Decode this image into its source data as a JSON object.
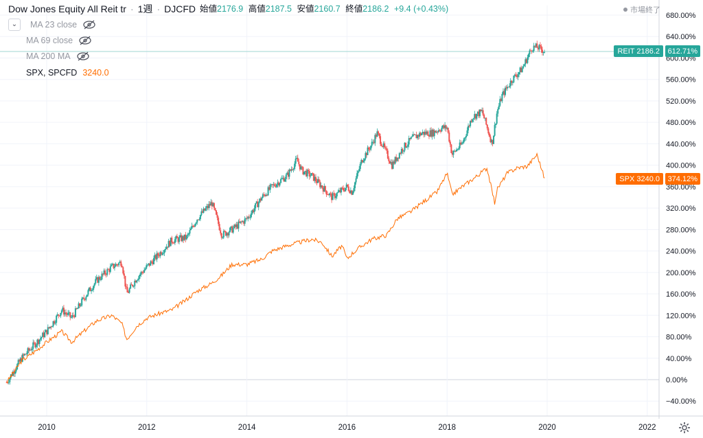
{
  "legend": {
    "title": "Dow Jones Equity All Reit tr",
    "interval": "1週",
    "source": "DJCFD",
    "open_label": "始値",
    "open": "2176.9",
    "high_label": "高値",
    "high": "2187.5",
    "low_label": "安値",
    "low": "2160.7",
    "close_label": "終値",
    "close": "2186.2",
    "change": "+9.4 (+0.43%)",
    "indicators": [
      "MA 23 close",
      "MA 69 close",
      "MA 200 MA"
    ],
    "compare_symbol": "SPX, SPCFD",
    "compare_value": "3240.0"
  },
  "market_status": "市場終了",
  "price_tags": {
    "reit_label": "REIT 2186.2",
    "reit_pct": "612.71%",
    "spx_label": "SPX 3240.0",
    "spx_pct": "374.12%"
  },
  "colors": {
    "up": "#26a69a",
    "down": "#ef5350",
    "spx": "#ff6d00",
    "grid": "#f0f3fa",
    "axis_text": "#131722"
  },
  "chart_data": {
    "type": "line",
    "title": "Dow Jones Equity All Reit tr",
    "xlabel": "",
    "ylabel": "",
    "x_ticks": [
      "2010",
      "2012",
      "2014",
      "2016",
      "2018",
      "2020",
      "2022"
    ],
    "y_ticks": [
      "680.00%",
      "640.00%",
      "600.00%",
      "560.00%",
      "520.00%",
      "480.00%",
      "440.00%",
      "400.00%",
      "360.00%",
      "320.00%",
      "280.00%",
      "240.00%",
      "200.00%",
      "160.00%",
      "120.00%",
      "80.00%",
      "40.00%",
      "0.00%",
      "−40.00%"
    ],
    "ylim": [
      -60,
      700
    ],
    "xlim": [
      2009.2,
      2022.5
    ],
    "grid": true,
    "series": [
      {
        "name": "Dow Jones Equity All Reit tr",
        "style": "candlestick",
        "x": [
          2009.2,
          2009.5,
          2009.8,
          2010.0,
          2010.3,
          2010.5,
          2010.8,
          2011.0,
          2011.3,
          2011.5,
          2011.6,
          2011.8,
          2012.0,
          2012.3,
          2012.5,
          2012.8,
          2013.0,
          2013.3,
          2013.5,
          2013.7,
          2014.0,
          2014.3,
          2014.5,
          2014.8,
          2015.0,
          2015.1,
          2015.3,
          2015.5,
          2015.7,
          2016.0,
          2016.1,
          2016.3,
          2016.5,
          2016.6,
          2016.8,
          2016.9,
          2017.1,
          2017.3,
          2017.5,
          2017.7,
          2017.9,
          2018.0,
          2018.1,
          2018.3,
          2018.5,
          2018.7,
          2018.9,
          2019.0,
          2019.1,
          2019.3,
          2019.5,
          2019.7,
          2019.8,
          2019.95
        ],
        "values": [
          -5,
          40,
          70,
          90,
          130,
          115,
          160,
          185,
          210,
          220,
          160,
          190,
          210,
          240,
          260,
          265,
          300,
          330,
          270,
          280,
          300,
          340,
          360,
          380,
          410,
          390,
          380,
          360,
          340,
          360,
          350,
          410,
          440,
          460,
          420,
          400,
          430,
          450,
          460,
          460,
          470,
          470,
          420,
          440,
          490,
          500,
          440,
          500,
          530,
          560,
          580,
          620,
          620,
          612.71
        ]
      },
      {
        "name": "SPX",
        "style": "line",
        "x": [
          2009.2,
          2009.5,
          2009.8,
          2010.0,
          2010.3,
          2010.5,
          2010.8,
          2011.0,
          2011.3,
          2011.5,
          2011.6,
          2011.8,
          2012.0,
          2012.3,
          2012.5,
          2012.8,
          2013.0,
          2013.3,
          2013.5,
          2013.7,
          2014.0,
          2014.3,
          2014.5,
          2014.8,
          2015.0,
          2015.3,
          2015.5,
          2015.7,
          2015.9,
          2016.0,
          2016.1,
          2016.3,
          2016.5,
          2016.8,
          2017.0,
          2017.3,
          2017.5,
          2017.8,
          2018.0,
          2018.1,
          2018.3,
          2018.6,
          2018.8,
          2018.95,
          2019.0,
          2019.2,
          2019.4,
          2019.6,
          2019.8,
          2019.95
        ],
        "values": [
          -5,
          35,
          55,
          70,
          90,
          70,
          95,
          110,
          120,
          105,
          75,
          100,
          115,
          125,
          130,
          150,
          165,
          180,
          195,
          215,
          215,
          225,
          240,
          250,
          255,
          262,
          256,
          230,
          250,
          225,
          235,
          250,
          262,
          270,
          300,
          315,
          330,
          350,
          385,
          345,
          360,
          380,
          395,
          330,
          355,
          385,
          395,
          398,
          420,
          374.12
        ]
      }
    ]
  }
}
